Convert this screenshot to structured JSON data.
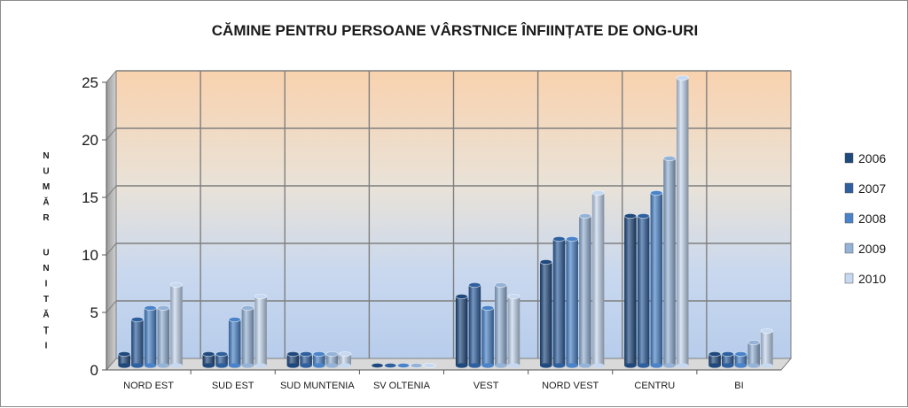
{
  "chart_data": {
    "type": "bar",
    "title": "CĂMINE PENTRU PERSOANE VÂRSTNICE ÎNFIINȚATE DE ONG-URI",
    "xlabel": "",
    "ylabel": "NUMĂR UNITĂȚI",
    "ylim": [
      0,
      25
    ],
    "yticks": [
      "0",
      "5",
      "10",
      "15",
      "20",
      "25"
    ],
    "grid": true,
    "legend_position": "right",
    "categories": [
      "NORD EST",
      "SUD EST",
      "SUD MUNTENIA",
      "SV OLTENIA",
      "VEST",
      "NORD VEST",
      "CENTRU",
      "BI"
    ],
    "series": [
      {
        "name": "2006",
        "color": "#1f497d",
        "values": [
          1,
          1,
          1,
          0,
          6,
          9,
          13,
          1
        ]
      },
      {
        "name": "2007",
        "color": "#2e5f9e",
        "values": [
          4,
          1,
          1,
          0,
          7,
          11,
          13,
          1
        ]
      },
      {
        "name": "2008",
        "color": "#4a83c9",
        "values": [
          5,
          4,
          1,
          0,
          5,
          11,
          15,
          1
        ]
      },
      {
        "name": "2009",
        "color": "#95b3d7",
        "values": [
          5,
          5,
          1,
          0,
          7,
          13,
          18,
          2
        ]
      },
      {
        "name": "2010",
        "color": "#c6d9f1",
        "values": [
          7,
          6,
          1,
          0,
          6,
          15,
          25,
          3
        ]
      }
    ]
  }
}
